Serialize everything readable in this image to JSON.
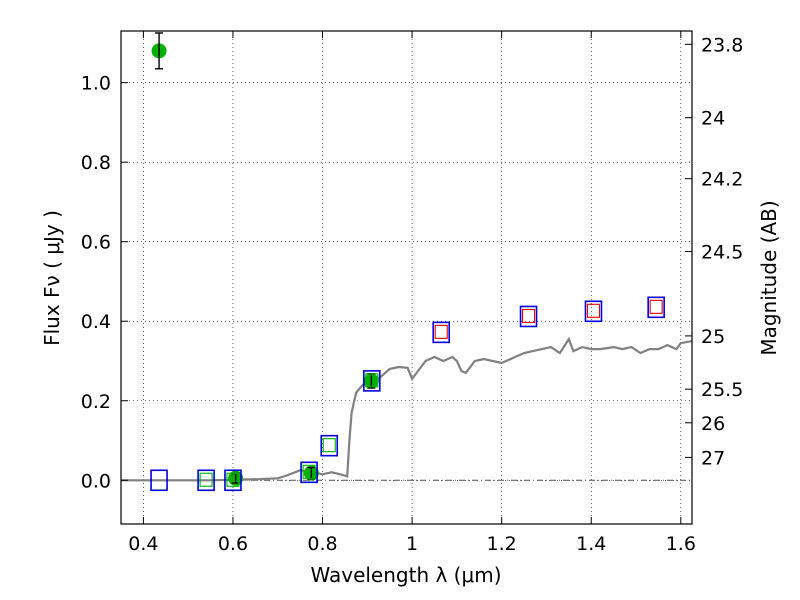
{
  "chart_data": {
    "type": "scatter",
    "xlabel": "Wavelength  λ (μm)",
    "ylabel": "Flux  Fν  ( μJy )",
    "y2label": "Magnitude (AB)",
    "xlim": [
      0.35,
      1.625
    ],
    "ylim": [
      -0.11,
      1.13
    ],
    "grid": true,
    "x_ticks": [
      0.4,
      0.6,
      0.8,
      1.0,
      1.2,
      1.4,
      1.6
    ],
    "x_tick_labels": [
      "0.4",
      "0.6",
      "0.8",
      "1",
      "1.2",
      "1.4",
      "1.6"
    ],
    "y_ticks": [
      0.0,
      0.2,
      0.4,
      0.6,
      0.8,
      1.0
    ],
    "y_tick_labels": [
      "0.0",
      "0.2",
      "0.4",
      "0.6",
      "0.8",
      "1.0"
    ],
    "magnitude_ticks": [
      {
        "label": "23.8",
        "mag": 23.8
      },
      {
        "label": "24",
        "mag": 24.0
      },
      {
        "label": "24.2",
        "mag": 24.2
      },
      {
        "label": "24.5",
        "mag": 24.5
      },
      {
        "label": "25",
        "mag": 25.0
      },
      {
        "label": "25.5",
        "mag": 25.5
      },
      {
        "label": "26",
        "mag": 26.0
      },
      {
        "label": "27",
        "mag": 27.0
      }
    ],
    "series": [
      {
        "name": "model-sed",
        "kind": "line",
        "color": "#808080",
        "points": [
          [
            0.35,
            0.0
          ],
          [
            0.45,
            0.0
          ],
          [
            0.55,
            0.0
          ],
          [
            0.62,
            0.002
          ],
          [
            0.66,
            0.003
          ],
          [
            0.7,
            0.005
          ],
          [
            0.72,
            0.012
          ],
          [
            0.75,
            0.025
          ],
          [
            0.78,
            0.02
          ],
          [
            0.8,
            0.015
          ],
          [
            0.82,
            0.02
          ],
          [
            0.84,
            0.015
          ],
          [
            0.855,
            0.01
          ],
          [
            0.86,
            0.1
          ],
          [
            0.865,
            0.17
          ],
          [
            0.875,
            0.22
          ],
          [
            0.89,
            0.24
          ],
          [
            0.91,
            0.245
          ],
          [
            0.93,
            0.26
          ],
          [
            0.95,
            0.28
          ],
          [
            0.97,
            0.285
          ],
          [
            0.99,
            0.283
          ],
          [
            1.0,
            0.255
          ],
          [
            1.01,
            0.27
          ],
          [
            1.03,
            0.3
          ],
          [
            1.05,
            0.31
          ],
          [
            1.07,
            0.3
          ],
          [
            1.09,
            0.31
          ],
          [
            1.1,
            0.3
          ],
          [
            1.11,
            0.275
          ],
          [
            1.12,
            0.27
          ],
          [
            1.14,
            0.3
          ],
          [
            1.16,
            0.305
          ],
          [
            1.18,
            0.3
          ],
          [
            1.2,
            0.295
          ],
          [
            1.21,
            0.3
          ],
          [
            1.23,
            0.31
          ],
          [
            1.25,
            0.32
          ],
          [
            1.27,
            0.325
          ],
          [
            1.29,
            0.33
          ],
          [
            1.31,
            0.335
          ],
          [
            1.33,
            0.32
          ],
          [
            1.35,
            0.355
          ],
          [
            1.36,
            0.325
          ],
          [
            1.38,
            0.335
          ],
          [
            1.4,
            0.33
          ],
          [
            1.42,
            0.33
          ],
          [
            1.45,
            0.335
          ],
          [
            1.47,
            0.33
          ],
          [
            1.49,
            0.335
          ],
          [
            1.51,
            0.32
          ],
          [
            1.53,
            0.33
          ],
          [
            1.55,
            0.33
          ],
          [
            1.57,
            0.34
          ],
          [
            1.59,
            0.33
          ],
          [
            1.6,
            0.345
          ],
          [
            1.625,
            0.35
          ]
        ]
      },
      {
        "name": "observed-flux",
        "kind": "points-errorbars",
        "color": "#00b000",
        "points": [
          {
            "x": 0.435,
            "y": 1.08,
            "err": 0.045
          },
          {
            "x": 0.606,
            "y": 0.005,
            "err": 0.012
          },
          {
            "x": 0.775,
            "y": 0.018,
            "err": 0.014
          },
          {
            "x": 0.909,
            "y": 0.25,
            "err": 0.018
          }
        ]
      },
      {
        "name": "model-bandpass",
        "kind": "squares",
        "color": "#0000dd",
        "points": [
          {
            "x": 0.435,
            "y": 0.0
          },
          {
            "x": 0.54,
            "y": 0.0
          },
          {
            "x": 0.6,
            "y": 0.0
          },
          {
            "x": 0.77,
            "y": 0.02
          },
          {
            "x": 0.815,
            "y": 0.087
          },
          {
            "x": 0.91,
            "y": 0.25
          },
          {
            "x": 1.065,
            "y": 0.372
          },
          {
            "x": 1.26,
            "y": 0.412
          },
          {
            "x": 1.405,
            "y": 0.425
          },
          {
            "x": 1.545,
            "y": 0.435
          }
        ]
      },
      {
        "name": "inner-green",
        "kind": "inner-squares",
        "color": "#00b000",
        "points": [
          {
            "x": 0.54,
            "y": 0.0
          },
          {
            "x": 0.6,
            "y": 0.0
          },
          {
            "x": 0.77,
            "y": 0.02
          },
          {
            "x": 0.815,
            "y": 0.087
          },
          {
            "x": 0.91,
            "y": 0.25
          }
        ]
      },
      {
        "name": "inner-red",
        "kind": "inner-squares",
        "color": "#e00000",
        "points": [
          {
            "x": 1.065,
            "y": 0.372
          },
          {
            "x": 1.26,
            "y": 0.412
          },
          {
            "x": 1.405,
            "y": 0.425
          },
          {
            "x": 1.545,
            "y": 0.435
          }
        ]
      }
    ],
    "zero_line": {
      "y": 0.0,
      "style": "dash-dot",
      "color": "#555555"
    }
  }
}
